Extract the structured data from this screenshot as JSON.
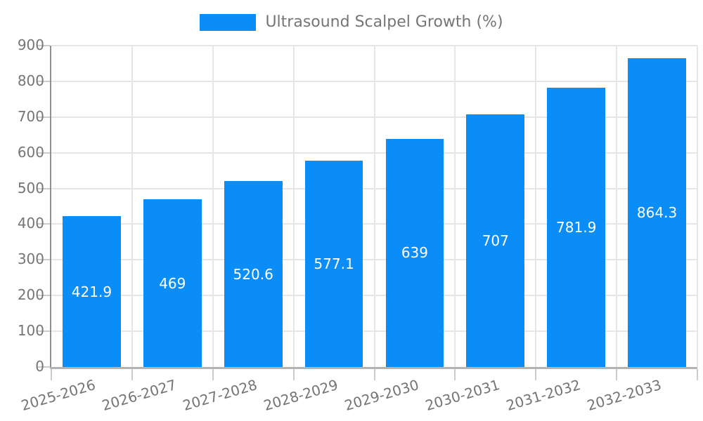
{
  "legend": {
    "series_label": "Ultrasound Scalpel Growth (%)"
  },
  "chart_data": {
    "type": "bar",
    "title": "Ultrasound Scalpel Growth (%)",
    "categories": [
      "2025-2026",
      "2026-2027",
      "2027-2028",
      "2028-2029",
      "2029-2030",
      "2030-2031",
      "2031-2032",
      "2032-2033"
    ],
    "values": [
      421.9,
      469,
      520.6,
      577.1,
      639,
      707,
      781.9,
      864.3
    ],
    "value_labels": [
      "421.9",
      "469",
      "520.6",
      "577.1",
      "639",
      "707",
      "781.9",
      "864.3"
    ],
    "xlabel": "",
    "ylabel": "",
    "ylim": [
      0,
      900
    ],
    "yticks": [
      0,
      100,
      200,
      300,
      400,
      500,
      600,
      700,
      800,
      900
    ],
    "grid": true,
    "legend_position": "top-center",
    "value_label_position": "inside-center",
    "x_label_rotation_deg": -16.5,
    "bar_color": "#0b8df8"
  },
  "style": {
    "background": "#ffffff",
    "axis_text_color": "#757575",
    "legend_text_color": "#757575",
    "grid_color": "#e6e6e6",
    "tick_color": "#cccccc",
    "y_axis_line_color": "#8f8f8f",
    "x_axis_line_color": "#b3b3b3",
    "value_text_color": "#ffffff"
  }
}
